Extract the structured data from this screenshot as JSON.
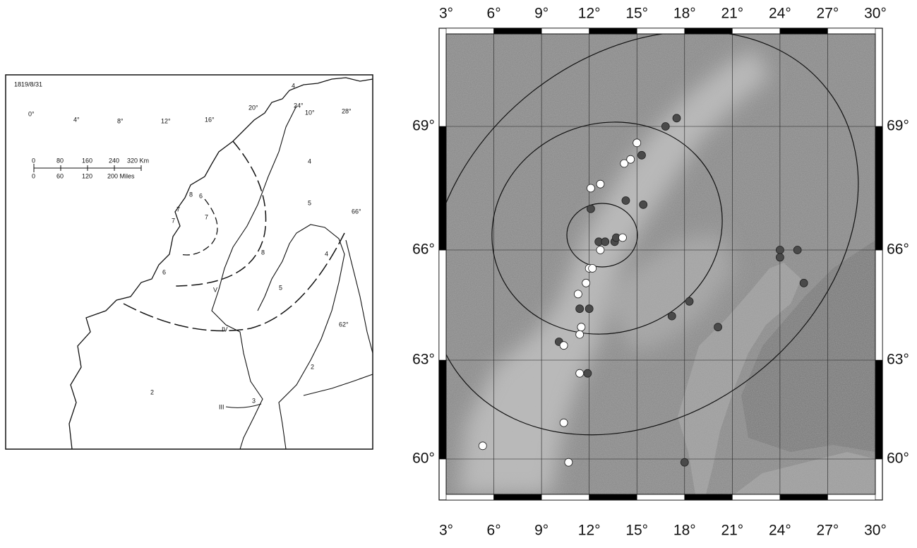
{
  "left_map": {
    "date": "1819/8/31",
    "lon_labels": [
      "0°",
      "4°",
      "8°",
      "12°",
      "16°",
      "20°",
      "24°",
      "10°",
      "28°"
    ],
    "lat_labels": [
      "66°",
      "62°"
    ],
    "scale_km": [
      "0",
      "80",
      "160",
      "240",
      "320 Km"
    ],
    "scale_miles": [
      "0",
      "60",
      "120",
      "200 Miles"
    ],
    "intensity_labels": [
      "4",
      "5",
      "4",
      "8",
      "6",
      "7",
      "7",
      "7",
      "6",
      "8",
      "5",
      "V",
      "IV",
      "III",
      "3",
      "2",
      "2",
      "4"
    ]
  },
  "right_map": {
    "lon_ticks": [
      {
        "value": 3,
        "label": "3°"
      },
      {
        "value": 6,
        "label": "6°"
      },
      {
        "value": 9,
        "label": "9°"
      },
      {
        "value": 12,
        "label": "12°"
      },
      {
        "value": 15,
        "label": "15°"
      },
      {
        "value": 18,
        "label": "18°"
      },
      {
        "value": 21,
        "label": "21°"
      },
      {
        "value": 24,
        "label": "24°"
      },
      {
        "value": 27,
        "label": "27°"
      },
      {
        "value": 30,
        "label": "30°"
      }
    ],
    "lat_ticks": [
      {
        "value": 60,
        "label": "60°"
      },
      {
        "value": 63,
        "label": "63°"
      },
      {
        "value": 66,
        "label": "66°"
      },
      {
        "value": 69,
        "label": "69°"
      }
    ],
    "point_groups": [
      {
        "color": "#4a4a4a",
        "lon": [
          17.5,
          16.8,
          15.3,
          14.3,
          15.4,
          12.1,
          12.6,
          13.0,
          13.6,
          13.7,
          24.0,
          25.1,
          24.0,
          25.5,
          17.2,
          18.3,
          20.1,
          11.4,
          12.0,
          10.1,
          11.9,
          18.0
        ],
        "lat": [
          69.2,
          69.0,
          68.3,
          67.2,
          67.1,
          67.0,
          66.2,
          66.2,
          66.2,
          66.3,
          66.0,
          66.0,
          65.8,
          65.1,
          64.2,
          64.6,
          63.9,
          64.4,
          64.4,
          63.5,
          62.6,
          59.9
        ]
      },
      {
        "color": "#ffffff",
        "lon": [
          15.0,
          14.2,
          14.6,
          12.1,
          12.7,
          12.7,
          14.1,
          12.0,
          12.2,
          11.8,
          11.3,
          11.5,
          11.4,
          10.4,
          11.4,
          10.4,
          10.7,
          5.3
        ],
        "lat": [
          68.6,
          68.1,
          68.2,
          67.5,
          67.6,
          66.0,
          66.3,
          65.5,
          65.5,
          65.1,
          64.8,
          63.9,
          63.7,
          63.4,
          62.6,
          61.1,
          59.9,
          60.4
        ]
      }
    ]
  }
}
